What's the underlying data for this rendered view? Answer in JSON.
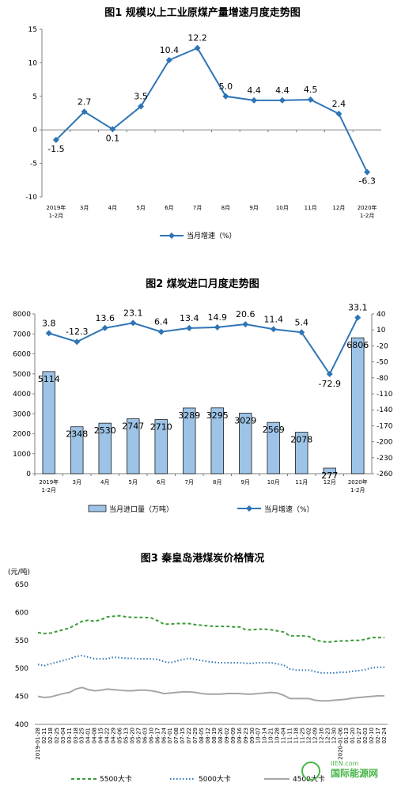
{
  "chart_data": [
    {
      "type": "line",
      "title": "图1  规模以上工业原煤产量增速月度走势图",
      "categories": [
        "2019年\n1-2月",
        "3月",
        "4月",
        "5月",
        "6月",
        "7月",
        "8月",
        "9月",
        "10月",
        "11月",
        "12月",
        "2020年\n1-2月"
      ],
      "series": [
        {
          "name": "当月增速（%）",
          "values": [
            -1.5,
            2.7,
            0.1,
            3.5,
            10.4,
            12.2,
            5.0,
            4.4,
            4.4,
            4.5,
            2.4,
            -6.3
          ],
          "labels": [
            "-1.5",
            "2.7",
            "0.1",
            "3.5",
            "10.4",
            "12.2",
            "5.0",
            "4.4",
            "4.4",
            "4.5",
            "2.4",
            "-6.3"
          ]
        }
      ],
      "ylim": [
        -10,
        15
      ],
      "yticks": [
        -10,
        -5,
        0,
        5,
        10,
        15
      ],
      "ytick_labels": [
        "-10",
        "-5",
        "0",
        "5",
        "10",
        "15"
      ],
      "legend": "bottom",
      "colors": {
        "series": "#2e75b6"
      }
    },
    {
      "type": "bar",
      "title": "图2  煤炭进口月度走势图",
      "categories": [
        "2019年\n1-2月",
        "3月",
        "4月",
        "5月",
        "6月",
        "7月",
        "8月",
        "9月",
        "10月",
        "11月",
        "12月",
        "2020年\n1-2月"
      ],
      "series": [
        {
          "name": "当月进口量（万吨）",
          "type": "bar",
          "axis": "left",
          "values": [
            5114,
            2348,
            2530,
            2747,
            2710,
            3289,
            3295,
            3029,
            2569,
            2078,
            277,
            6806
          ],
          "labels": [
            "5114",
            "2348",
            "2530",
            "2747",
            "2710",
            "3289",
            "3295",
            "3029",
            "2569",
            "2078",
            "277",
            "6806"
          ]
        },
        {
          "name": "当月增速（%）",
          "type": "line",
          "axis": "right",
          "values": [
            3.8,
            -12.3,
            13.6,
            23.1,
            6.4,
            13.4,
            14.9,
            20.6,
            11.4,
            5.4,
            -72.9,
            33.1
          ],
          "labels": [
            "3.8",
            "-12.3",
            "13.6",
            "23.1",
            "6.4",
            "13.4",
            "14.9",
            "20.6",
            "11.4",
            "5.4",
            "-72.9",
            "33.1"
          ]
        }
      ],
      "ylim_left": [
        0,
        8000
      ],
      "yticks_left": [
        0,
        1000,
        2000,
        3000,
        4000,
        5000,
        6000,
        7000,
        8000
      ],
      "ytick_labels_left": [
        "0",
        "1000",
        "2000",
        "3000",
        "4000",
        "5000",
        "6000",
        "7000",
        "8000"
      ],
      "ylim_right": [
        -260,
        40
      ],
      "yticks_right": [
        -260,
        -230,
        -200,
        -170,
        -140,
        -110,
        -80,
        -50,
        -20,
        10,
        40
      ],
      "ytick_labels_right": [
        "-260",
        "-230",
        "-200",
        "-170",
        "-140",
        "-110",
        "-80",
        "-50",
        "-20",
        "10",
        "40"
      ],
      "legend": "bottom",
      "colors": {
        "bar": "#9dc3e6",
        "bar_edge": "#000000",
        "line": "#2e75b6"
      }
    },
    {
      "type": "line",
      "title": "图3    秦皇岛港煤炭价格情况",
      "ylabel": "(元/吨)",
      "ylim": [
        400,
        650
      ],
      "yticks": [
        400,
        450,
        500,
        550,
        600,
        650
      ],
      "ytick_labels": [
        "400",
        "450",
        "500",
        "550",
        "600",
        "650"
      ],
      "x": [
        "2019-01-28",
        "02-11",
        "02-18",
        "02-25",
        "03-04",
        "03-11",
        "03-18",
        "03-25",
        "04-01",
        "04-08",
        "04-15",
        "04-22",
        "04-29",
        "05-06",
        "05-13",
        "05-20",
        "05-27",
        "06-03",
        "06-10",
        "06-17",
        "06-24",
        "07-01",
        "07-08",
        "07-15",
        "07-22",
        "07-29",
        "08-05",
        "08-12",
        "08-19",
        "08-26",
        "09-02",
        "09-09",
        "09-16",
        "09-23",
        "09-30",
        "10-07",
        "10-14",
        "10-21",
        "10-28",
        "11-04",
        "11-11",
        "11-18",
        "11-25",
        "12-02",
        "12-09",
        "12-16",
        "12-23",
        "12-30",
        "2020-01-06",
        "01-13",
        "01-20",
        "01-27",
        "02-03",
        "02-10",
        "02-17",
        "02-24"
      ],
      "xtick_labels": [
        "2019-01-28",
        "02-11",
        "02-18",
        "02-25",
        "03-04",
        "03-11",
        "03-18",
        "03-25",
        "04-01",
        "04-08",
        "04-15",
        "04-22",
        "04-29",
        "05-06",
        "05-13",
        "05-20",
        "05-27",
        "06-03",
        "06-10",
        "06-17",
        "06-24",
        "07-01",
        "07-08",
        "07-15",
        "07-22",
        "07-29",
        "08-05",
        "08-12",
        "08-19",
        "08-26",
        "09-02",
        "09-09",
        "09-16",
        "09-23",
        "09-30",
        "10-07",
        "10-14",
        "10-21",
        "10-28",
        "11-04",
        "11-11",
        "11-18",
        "11-25",
        "12-02",
        "12-09",
        "12-16",
        "12-23",
        "12-30",
        "2020-01-06",
        "01-13",
        "01-20",
        "01-27",
        "02-03",
        "02-10",
        "02-17",
        "02-24"
      ],
      "series": [
        {
          "name": "5500大卡",
          "style": "dashed",
          "values": [
            564,
            562,
            563,
            566,
            569,
            572,
            578,
            584,
            586,
            584,
            587,
            592,
            593,
            594,
            592,
            591,
            591,
            591,
            590,
            585,
            579,
            579,
            580,
            580,
            580,
            578,
            577,
            576,
            575,
            575,
            575,
            574,
            574,
            569,
            569,
            570,
            570,
            569,
            567,
            565,
            558,
            558,
            558,
            557,
            551,
            548,
            547,
            548,
            549,
            549,
            550,
            550,
            552,
            555,
            555,
            555
          ]
        },
        {
          "name": "5000大卡",
          "style": "dotted",
          "values": [
            507,
            505,
            508,
            511,
            514,
            517,
            521,
            523,
            520,
            517,
            517,
            517,
            520,
            519,
            518,
            518,
            517,
            517,
            517,
            516,
            512,
            510,
            513,
            516,
            518,
            516,
            514,
            512,
            511,
            510,
            510,
            510,
            510,
            509,
            509,
            510,
            510,
            510,
            508,
            506,
            499,
            497,
            497,
            497,
            494,
            492,
            492,
            492,
            493,
            493,
            495,
            496,
            498,
            501,
            502,
            502
          ]
        },
        {
          "name": "4500大卡",
          "style": "solid",
          "values": [
            450,
            448,
            449,
            452,
            455,
            457,
            463,
            466,
            462,
            460,
            461,
            463,
            462,
            461,
            460,
            460,
            461,
            461,
            460,
            458,
            455,
            456,
            457,
            458,
            458,
            457,
            455,
            454,
            454,
            454,
            455,
            455,
            455,
            454,
            454,
            455,
            456,
            457,
            456,
            452,
            446,
            446,
            446,
            446,
            443,
            442,
            442,
            443,
            444,
            445,
            447,
            448,
            449,
            450,
            451,
            451
          ]
        }
      ],
      "legend": "bottom",
      "colors": {
        "5500": "#3a9b3a",
        "5000": "#2e75b6",
        "4500": "#a6a6a6"
      }
    }
  ],
  "watermark": {
    "site": "IIEN.com",
    "name": "国际能源网"
  }
}
